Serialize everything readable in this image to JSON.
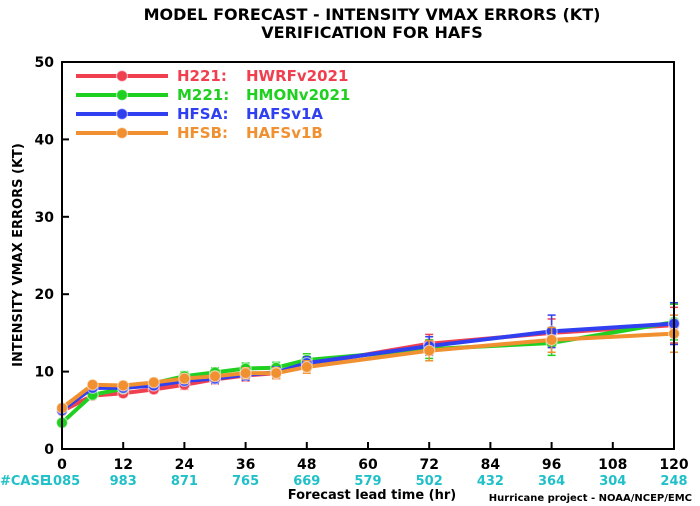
{
  "chart_data": {
    "type": "line",
    "title": "MODEL FORECAST - INTENSITY VMAX ERRORS (KT)",
    "subtitle": "VERIFICATION FOR HAFS",
    "xlabel": "Forecast lead time (hr)",
    "ylabel": "INTENSITY VMAX ERRORS (KT)",
    "xlim": [
      0,
      120
    ],
    "ylim": [
      0,
      50
    ],
    "x_ticks": [
      0,
      12,
      24,
      36,
      48,
      60,
      72,
      84,
      96,
      108,
      120
    ],
    "y_ticks": [
      0,
      10,
      20,
      30,
      40,
      50
    ],
    "grid": false,
    "legend_position": "top-left",
    "case_label": "#CASE",
    "case_counts": [
      {
        "x": 0,
        "label": "1085"
      },
      {
        "x": 12,
        "label": "983"
      },
      {
        "x": 24,
        "label": "871"
      },
      {
        "x": 36,
        "label": "765"
      },
      {
        "x": 48,
        "label": "669"
      },
      {
        "x": 60,
        "label": "579"
      },
      {
        "x": 72,
        "label": "502"
      },
      {
        "x": 84,
        "label": "432"
      },
      {
        "x": 96,
        "label": "364"
      },
      {
        "x": 108,
        "label": "304"
      },
      {
        "x": 120,
        "label": "248"
      }
    ],
    "credit": "Hurricane project - NOAA/NCEP/EMC",
    "series": [
      {
        "name": "H221:",
        "model": "HWRFv2021",
        "color": "#f04050",
        "x": [
          0,
          6,
          12,
          18,
          24,
          30,
          36,
          42,
          48,
          72,
          96,
          120
        ],
        "y": [
          4.9,
          6.9,
          7.2,
          7.7,
          8.3,
          9.0,
          9.5,
          9.8,
          10.9,
          13.6,
          15.0,
          16.0
        ],
        "err": [
          0.3,
          0.4,
          0.5,
          0.5,
          0.6,
          0.6,
          0.7,
          0.7,
          0.8,
          1.2,
          1.8,
          2.3
        ]
      },
      {
        "name": "M221:",
        "model": "HMONv2021",
        "color": "#20d020",
        "x": [
          0,
          6,
          12,
          18,
          24,
          30,
          36,
          42,
          48,
          72,
          96,
          120
        ],
        "y": [
          3.4,
          7.0,
          7.8,
          8.5,
          9.4,
          9.9,
          10.4,
          10.5,
          11.5,
          12.9,
          13.7,
          16.4
        ],
        "err": [
          0.3,
          0.4,
          0.5,
          0.5,
          0.6,
          0.6,
          0.7,
          0.7,
          0.8,
          1.2,
          1.6,
          2.3
        ]
      },
      {
        "name": "HFSA:",
        "model": "HAFSv1A",
        "color": "#3040f0",
        "x": [
          0,
          6,
          12,
          18,
          24,
          30,
          36,
          42,
          48,
          72,
          96,
          120
        ],
        "y": [
          5.0,
          7.9,
          7.9,
          8.2,
          8.8,
          9.1,
          9.6,
          9.9,
          11.1,
          13.3,
          15.2,
          16.2
        ],
        "err": [
          0.3,
          0.4,
          0.5,
          0.5,
          0.6,
          0.6,
          0.7,
          0.7,
          0.8,
          1.2,
          2.1,
          2.7
        ]
      },
      {
        "name": "HFSB:",
        "model": "HAFSv1B",
        "color": "#f09030",
        "x": [
          0,
          6,
          12,
          18,
          24,
          30,
          36,
          42,
          48,
          72,
          96,
          120
        ],
        "y": [
          5.3,
          8.3,
          8.2,
          8.6,
          9.1,
          9.4,
          9.8,
          9.8,
          10.6,
          12.7,
          14.1,
          14.9
        ],
        "err": [
          0.3,
          0.4,
          0.5,
          0.5,
          0.6,
          0.6,
          0.7,
          0.7,
          0.8,
          1.3,
          1.6,
          2.4
        ]
      }
    ]
  }
}
